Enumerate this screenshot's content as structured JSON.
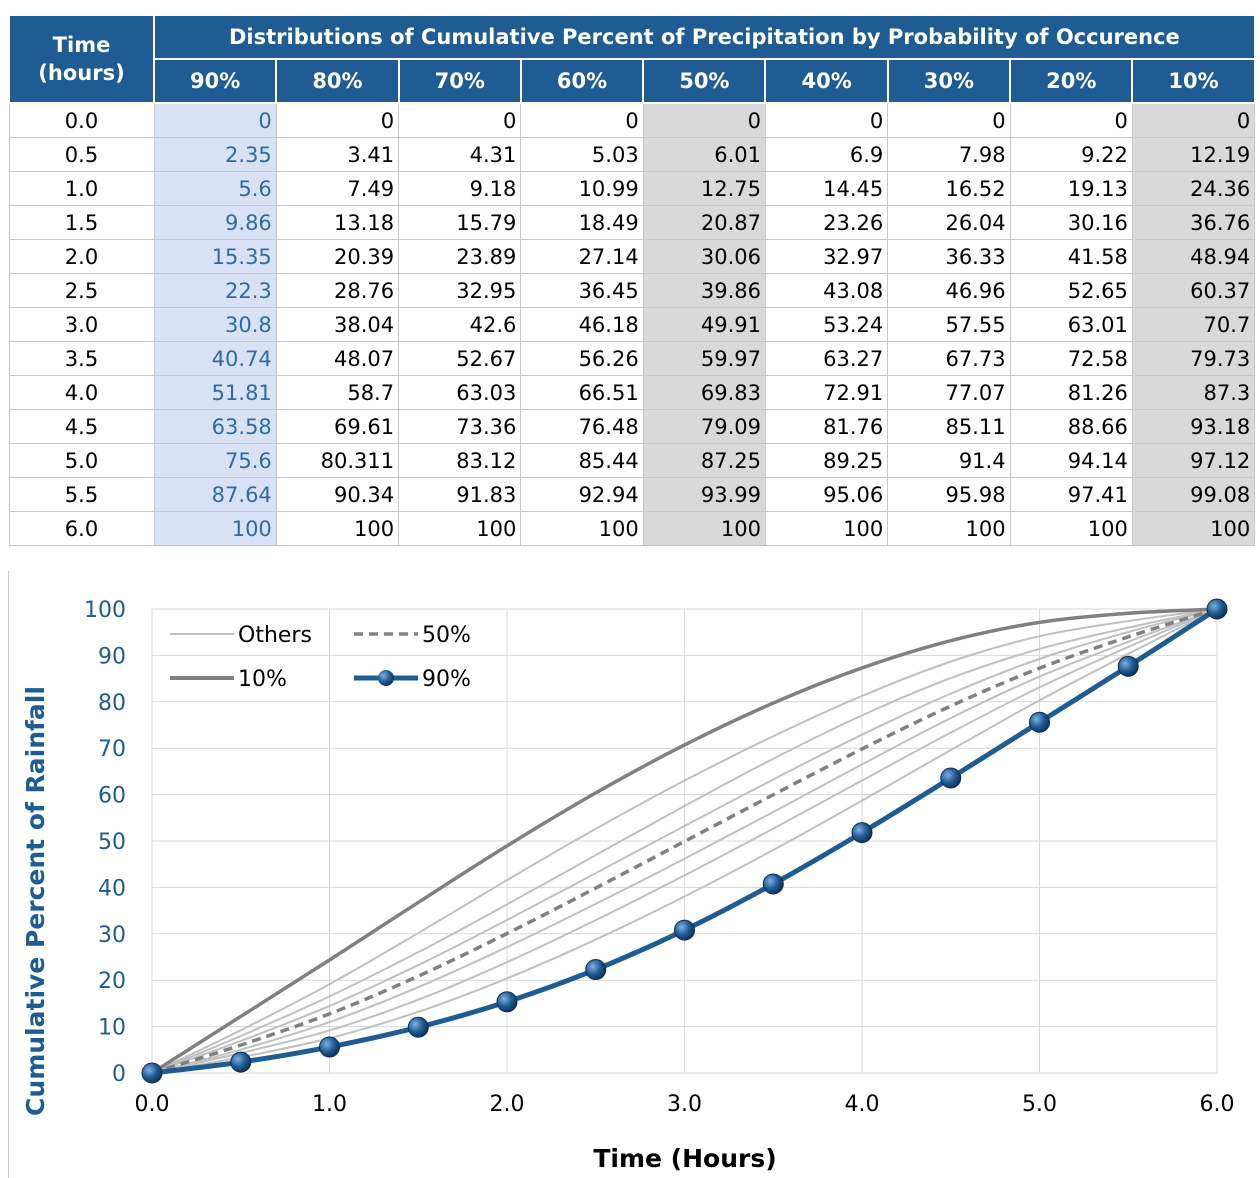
{
  "table": {
    "time_header": [
      "Time",
      "(hours)"
    ],
    "group_header": "Distributions of Cumulative Percent of Precipitation by Probability of Occurence",
    "columns": [
      "90%",
      "80%",
      "70%",
      "60%",
      "50%",
      "40%",
      "30%",
      "20%",
      "10%"
    ],
    "rows": [
      {
        "time": "0.0",
        "values": [
          "0",
          "0",
          "0",
          "0",
          "0",
          "0",
          "0",
          "0",
          "0"
        ]
      },
      {
        "time": "0.5",
        "values": [
          "2.35",
          "3.41",
          "4.31",
          "5.03",
          "6.01",
          "6.9",
          "7.98",
          "9.22",
          "12.19"
        ]
      },
      {
        "time": "1.0",
        "values": [
          "5.6",
          "7.49",
          "9.18",
          "10.99",
          "12.75",
          "14.45",
          "16.52",
          "19.13",
          "24.36"
        ]
      },
      {
        "time": "1.5",
        "values": [
          "9.86",
          "13.18",
          "15.79",
          "18.49",
          "20.87",
          "23.26",
          "26.04",
          "30.16",
          "36.76"
        ]
      },
      {
        "time": "2.0",
        "values": [
          "15.35",
          "20.39",
          "23.89",
          "27.14",
          "30.06",
          "32.97",
          "36.33",
          "41.58",
          "48.94"
        ]
      },
      {
        "time": "2.5",
        "values": [
          "22.3",
          "28.76",
          "32.95",
          "36.45",
          "39.86",
          "43.08",
          "46.96",
          "52.65",
          "60.37"
        ]
      },
      {
        "time": "3.0",
        "values": [
          "30.8",
          "38.04",
          "42.6",
          "46.18",
          "49.91",
          "53.24",
          "57.55",
          "63.01",
          "70.7"
        ]
      },
      {
        "time": "3.5",
        "values": [
          "40.74",
          "48.07",
          "52.67",
          "56.26",
          "59.97",
          "63.27",
          "67.73",
          "72.58",
          "79.73"
        ]
      },
      {
        "time": "4.0",
        "values": [
          "51.81",
          "58.7",
          "63.03",
          "66.51",
          "69.83",
          "72.91",
          "77.07",
          "81.26",
          "87.3"
        ]
      },
      {
        "time": "4.5",
        "values": [
          "63.58",
          "69.61",
          "73.36",
          "76.48",
          "79.09",
          "81.76",
          "85.11",
          "88.66",
          "93.18"
        ]
      },
      {
        "time": "5.0",
        "values": [
          "75.6",
          "80.311",
          "83.12",
          "85.44",
          "87.25",
          "89.25",
          "91.4",
          "94.14",
          "97.12"
        ]
      },
      {
        "time": "5.5",
        "values": [
          "87.64",
          "90.34",
          "91.83",
          "92.94",
          "93.99",
          "95.06",
          "95.98",
          "97.41",
          "99.08"
        ]
      },
      {
        "time": "6.0",
        "values": [
          "100",
          "100",
          "100",
          "100",
          "100",
          "100",
          "100",
          "100",
          "100"
        ]
      }
    ]
  },
  "chart_data": {
    "type": "line",
    "xlabel": "Time (Hours)",
    "ylabel": "Cumulative Percent of Rainfall",
    "xlim": [
      0,
      6
    ],
    "ylim": [
      0,
      100
    ],
    "xticks": [
      "0.0",
      "1.0",
      "2.0",
      "3.0",
      "4.0",
      "5.0",
      "6.0"
    ],
    "yticks": [
      "0",
      "10",
      "20",
      "30",
      "40",
      "50",
      "60",
      "70",
      "80",
      "90",
      "100"
    ],
    "grid": true,
    "legend": {
      "placement": "top-left",
      "entries": [
        "Others",
        "50%",
        "10%",
        "90%"
      ]
    },
    "x": [
      0,
      0.5,
      1,
      1.5,
      2,
      2.5,
      3,
      3.5,
      4,
      4.5,
      5,
      5.5,
      6
    ],
    "others_fine": [
      [
        0,
        1.31,
        2.71,
        4.2,
        5.76,
        7.41,
        9.15,
        10.97,
        12.87,
        14.86,
        16.94,
        19.1,
        21.34,
        23.67,
        26.09,
        28.58,
        31.17,
        33.83,
        36.59,
        39.42,
        42.34,
        45.35,
        48.44,
        51.62,
        54.88,
        58.22,
        61.65,
        65.17,
        68.76,
        72.45,
        76.22,
        80.07,
        84.01,
        88.03,
        92.13,
        96.32,
        100
      ],
      [
        0,
        1.96,
        4.04,
        6.24,
        8.56,
        11.0,
        13.55,
        16.21,
        18.98,
        21.87,
        24.86,
        27.96,
        31.16,
        34.46,
        37.85,
        41.35,
        44.93,
        48.61,
        52.37,
        56.22,
        60.15,
        64.16,
        68.24,
        72.39,
        76.61,
        80.89,
        85.23,
        89.62,
        94.07,
        98.56,
        100,
        100,
        100,
        100,
        100,
        100,
        100
      ],
      [
        0,
        2.62,
        5.37,
        8.25,
        11.25,
        14.36,
        17.58,
        20.9,
        24.32,
        27.82,
        31.42,
        35.09,
        38.83,
        42.64,
        46.51,
        50.44,
        54.42,
        58.44,
        62.5,
        66.59,
        70.71,
        74.85,
        79.0,
        83.16,
        87.32,
        91.48,
        95.62,
        99.74,
        100,
        100,
        100,
        100,
        100,
        100,
        100,
        100,
        100
      ]
    ],
    "series": [
      {
        "name": "50%",
        "values": [
          0,
          6.01,
          12.75,
          20.87,
          30.06,
          39.86,
          49.91,
          59.97,
          69.83,
          79.09,
          87.25,
          93.99,
          100
        ]
      },
      {
        "name": "10%",
        "values": [
          0,
          12.19,
          24.36,
          36.76,
          48.94,
          60.37,
          70.7,
          79.73,
          87.3,
          93.18,
          97.12,
          99.08,
          100
        ]
      },
      {
        "name": "90%",
        "values": [
          0,
          2.35,
          5.6,
          9.86,
          15.35,
          22.3,
          30.8,
          40.74,
          51.81,
          63.58,
          75.6,
          87.64,
          100
        ]
      },
      {
        "name": "Others",
        "values_by_curve": [
          [
            0,
            3.41,
            7.49,
            13.18,
            20.39,
            28.76,
            38.04,
            48.07,
            58.7,
            69.61,
            80.311,
            90.34,
            100
          ],
          [
            0,
            4.31,
            9.18,
            15.79,
            23.89,
            32.95,
            42.6,
            52.67,
            63.03,
            73.36,
            83.12,
            91.83,
            100
          ],
          [
            0,
            5.03,
            10.99,
            18.49,
            27.14,
            36.45,
            46.18,
            56.26,
            66.51,
            76.48,
            85.44,
            92.94,
            100
          ],
          [
            0,
            6.9,
            14.45,
            23.26,
            32.97,
            43.08,
            53.24,
            63.27,
            72.91,
            81.76,
            89.25,
            95.06,
            100
          ],
          [
            0,
            7.98,
            16.52,
            26.04,
            36.33,
            46.96,
            57.55,
            67.73,
            77.07,
            85.11,
            91.4,
            95.98,
            100
          ],
          [
            0,
            9.22,
            19.13,
            30.16,
            41.58,
            52.65,
            63.01,
            72.58,
            81.26,
            88.66,
            94.14,
            97.41,
            100
          ]
        ]
      }
    ],
    "colors": {
      "s90": "#1f5c94",
      "s10": "#808080",
      "s50": "#808080",
      "others": "#c0c0c0",
      "grid": "#d9d9d9",
      "ytick": "#1f5c94"
    }
  }
}
